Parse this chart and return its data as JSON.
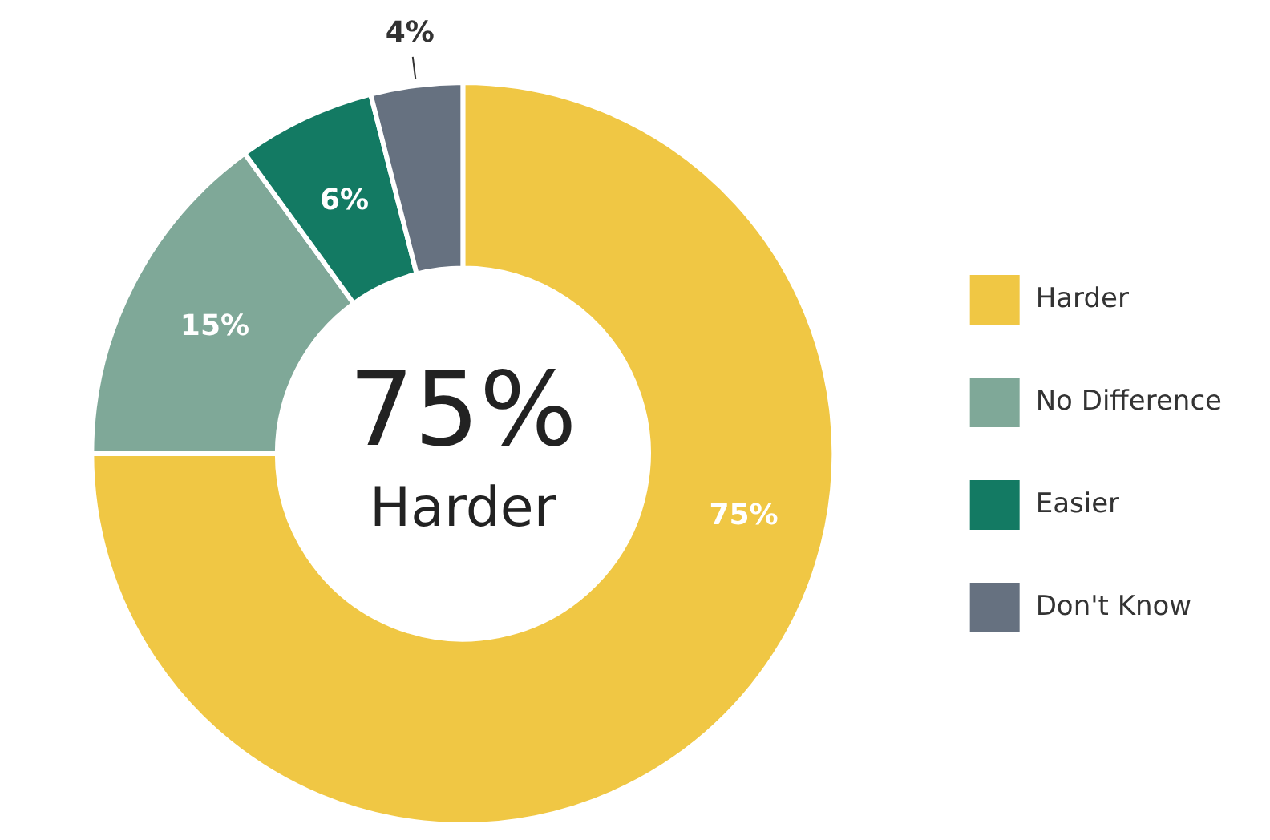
{
  "chart_data": {
    "type": "donut",
    "categories": [
      "Harder",
      "No Difference",
      "Easier",
      "Don't Know"
    ],
    "values": [
      75,
      15,
      6,
      4
    ],
    "colors": [
      "#f0c744",
      "#7fa898",
      "#137a63",
      "#667180"
    ],
    "value_labels": [
      "75%",
      "15%",
      "6%",
      "4%"
    ],
    "legend": "right",
    "annotations": [
      "75%",
      "Harder"
    ]
  }
}
